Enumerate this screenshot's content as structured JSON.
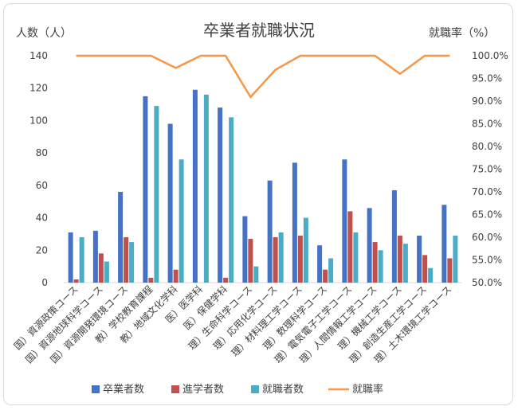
{
  "chart_data": {
    "type": "bar+line",
    "title": "卒業者就職状況",
    "left_axis_label": "人数（人）",
    "right_axis_label": "就職率（%）",
    "y_left_range": [
      0,
      140
    ],
    "y_left_ticks": [
      "0",
      "20",
      "40",
      "60",
      "80",
      "100",
      "120",
      "140"
    ],
    "y_right_range": [
      0.5,
      1.0
    ],
    "y_right_ticks": [
      "50.0%",
      "55.0%",
      "60.0%",
      "65.0%",
      "70.0%",
      "75.0%",
      "80.0%",
      "85.0%",
      "90.0%",
      "95.0%",
      "100.0%"
    ],
    "grid": false,
    "legend_position": "bottom",
    "categories": [
      "国）資源政策コース",
      "国）資源地球科学コース",
      "国）資源開発環境コース",
      "教）学校教育課程",
      "教）地域文化学科",
      "医）医学科",
      "医）保健学科",
      "理）生命科学コース",
      "理）応用化学コース",
      "理）材料理工学コース",
      "理）数理科学コース",
      "理）電気電子工学コース",
      "理）人間情報工学コース",
      "理）機械工学コース",
      "理）創造生産工学コース",
      "理）土木環境工学コース"
    ],
    "series": [
      {
        "name": "卒業者数",
        "kind": "bar",
        "axis": "left",
        "color": "#4472c4",
        "values": [
          31,
          32,
          56,
          115,
          98,
          119,
          108,
          41,
          63,
          74,
          23,
          76,
          46,
          57,
          29,
          48
        ]
      },
      {
        "name": "進学者数",
        "kind": "bar",
        "axis": "left",
        "color": "#c0504d",
        "values": [
          2,
          18,
          28,
          3,
          8,
          0,
          3,
          27,
          28,
          29,
          8,
          44,
          25,
          29,
          17,
          15
        ]
      },
      {
        "name": "就職者数",
        "kind": "bar",
        "axis": "left",
        "color": "#4bacc6",
        "values": [
          28,
          13,
          25,
          109,
          76,
          116,
          102,
          10,
          31,
          40,
          15,
          31,
          20,
          24,
          9,
          29
        ]
      },
      {
        "name": "就職率",
        "kind": "line",
        "axis": "right",
        "color": "#f79646",
        "values": [
          1.0,
          1.0,
          1.0,
          1.0,
          0.973,
          1.0,
          1.0,
          0.909,
          0.969,
          1.0,
          1.0,
          1.0,
          1.0,
          0.96,
          1.0,
          1.0
        ]
      }
    ]
  }
}
